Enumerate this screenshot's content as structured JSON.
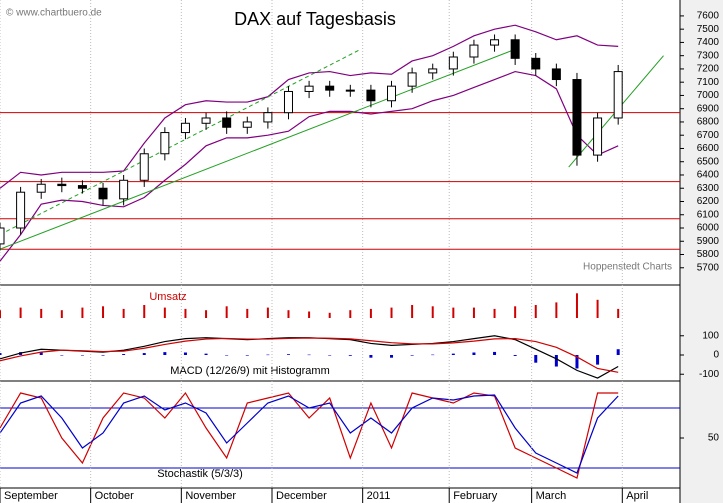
{
  "chart_data": [
    {
      "type": "candlestick",
      "title": "DAX auf Tagesbasis",
      "watermark": "© www.chartbuero.de",
      "source": "Hoppenstedt Charts",
      "x": [
        0,
        5,
        10,
        15,
        20,
        25,
        30,
        35,
        40,
        45,
        50,
        55,
        60,
        65,
        70,
        75,
        80,
        85,
        90,
        95,
        100,
        105,
        110,
        115,
        120,
        125,
        130,
        135,
        140,
        145,
        150
      ],
      "open": [
        5880,
        6000,
        6270,
        6330,
        6320,
        6300,
        6220,
        6360,
        6560,
        6720,
        6790,
        6830,
        6760,
        6800,
        6870,
        7030,
        7070,
        7040,
        7040,
        6960,
        7070,
        7170,
        7200,
        7290,
        7380,
        7420,
        7280,
        7200,
        7120,
        6550,
        6830
      ],
      "high": [
        6040,
        6310,
        6370,
        6380,
        6360,
        6340,
        6400,
        6600,
        6760,
        6830,
        6870,
        6880,
        6840,
        6910,
        7070,
        7110,
        7110,
        7080,
        7080,
        7110,
        7210,
        7240,
        7330,
        7420,
        7460,
        7460,
        7320,
        7240,
        7170,
        6870,
        7230
      ],
      "low": [
        5830,
        5950,
        6220,
        6270,
        6260,
        6170,
        6170,
        6310,
        6510,
        6670,
        6740,
        6710,
        6710,
        6750,
        6820,
        6980,
        6990,
        6990,
        6910,
        6910,
        7020,
        7120,
        7150,
        7240,
        7330,
        7230,
        7150,
        7070,
        6470,
        6500,
        6780
      ],
      "close": [
        6000,
        6270,
        6330,
        6320,
        6300,
        6220,
        6360,
        6560,
        6720,
        6790,
        6830,
        6760,
        6800,
        6870,
        7030,
        7070,
        7040,
        7040,
        6960,
        7070,
        7170,
        7200,
        7290,
        7380,
        7420,
        7280,
        7200,
        7120,
        6550,
        6830,
        7180
      ],
      "bands": [
        {
          "color": "#800080",
          "values": [
            6300,
            6420,
            6400,
            6420,
            6420,
            6420,
            6430,
            6640,
            6830,
            6930,
            6960,
            6950,
            6950,
            6990,
            7120,
            7170,
            7180,
            7150,
            7170,
            7160,
            7260,
            7300,
            7370,
            7450,
            7500,
            7530,
            7480,
            7420,
            7450,
            7380,
            7370
          ]
        },
        {
          "color": "#800080",
          "values": [
            5750,
            5950,
            6180,
            6210,
            6200,
            6170,
            6160,
            6230,
            6360,
            6480,
            6620,
            6680,
            6680,
            6700,
            6730,
            6840,
            6880,
            6880,
            6860,
            6880,
            6900,
            6960,
            7000,
            7060,
            7120,
            7180,
            7150,
            7050,
            6700,
            6550,
            6620
          ]
        }
      ],
      "trend_lines": [
        {
          "x": [
            0,
            126
          ],
          "y": [
            5840,
            7360
          ],
          "color": "#22a022",
          "dashed": false
        },
        {
          "x": [
            0,
            87
          ],
          "y": [
            5950,
            7340
          ],
          "color": "#22a022",
          "dashed": true
        },
        {
          "x": [
            138,
            161
          ],
          "y": [
            6460,
            7300
          ],
          "color": "#22a022",
          "dashed": false
        }
      ],
      "hlines": [
        6870,
        6350,
        6070,
        5840
      ],
      "hline_color": "#d00000",
      "xlim": [
        0,
        165
      ],
      "ylim": [
        5570,
        7720
      ],
      "yticks": [
        5700,
        5800,
        5900,
        6000,
        6100,
        6200,
        6300,
        6400,
        6500,
        6600,
        6700,
        6800,
        6900,
        7000,
        7100,
        7200,
        7300,
        7400,
        7500,
        7600
      ]
    },
    {
      "type": "bar",
      "title": "Umsatz",
      "color": "#d00000",
      "x": [
        0,
        5,
        10,
        15,
        20,
        25,
        30,
        35,
        40,
        45,
        50,
        55,
        60,
        65,
        70,
        75,
        80,
        85,
        90,
        95,
        100,
        105,
        110,
        115,
        120,
        125,
        130,
        135,
        140,
        145,
        150
      ],
      "values": [
        30,
        40,
        35,
        30,
        40,
        45,
        35,
        50,
        40,
        35,
        30,
        45,
        35,
        40,
        30,
        25,
        20,
        30,
        35,
        40,
        50,
        45,
        40,
        40,
        35,
        45,
        50,
        60,
        95,
        70,
        35
      ],
      "xlim": [
        0,
        165
      ],
      "ylim": [
        0,
        100
      ]
    },
    {
      "type": "macd",
      "title": "MACD (12/26/9) mit Histogramm",
      "x": [
        0,
        5,
        10,
        15,
        20,
        25,
        30,
        35,
        40,
        45,
        50,
        55,
        60,
        65,
        70,
        75,
        80,
        85,
        90,
        95,
        100,
        105,
        110,
        115,
        120,
        125,
        130,
        135,
        140,
        145,
        150
      ],
      "series": [
        {
          "color": "#000000",
          "values": [
            -20,
            10,
            30,
            25,
            20,
            15,
            25,
            45,
            70,
            85,
            90,
            85,
            80,
            85,
            90,
            90,
            85,
            80,
            60,
            50,
            55,
            60,
            70,
            85,
            100,
            80,
            30,
            -20,
            -80,
            -120,
            -60
          ]
        },
        {
          "color": "#d00000",
          "values": [
            -30,
            -5,
            15,
            25,
            22,
            18,
            20,
            35,
            55,
            72,
            83,
            86,
            83,
            83,
            86,
            88,
            87,
            84,
            74,
            64,
            58,
            58,
            63,
            72,
            84,
            85,
            70,
            40,
            -10,
            -70,
            -90
          ]
        }
      ],
      "histogram": {
        "color": "#0000cc",
        "values": [
          10,
          15,
          15,
          0,
          -2,
          -3,
          5,
          10,
          15,
          13,
          7,
          -1,
          -3,
          2,
          4,
          2,
          -2,
          -4,
          -14,
          -14,
          -3,
          2,
          7,
          13,
          16,
          -5,
          -40,
          -60,
          -70,
          -50,
          30
        ]
      },
      "xlim": [
        0,
        165
      ],
      "ylim": [
        -130,
        130
      ],
      "yticks": [
        -100,
        0,
        100
      ]
    },
    {
      "type": "stochastic",
      "title": "Stochastik (5/3/3)",
      "x": [
        0,
        5,
        10,
        15,
        20,
        25,
        30,
        35,
        40,
        45,
        50,
        55,
        60,
        65,
        70,
        75,
        80,
        85,
        90,
        95,
        100,
        105,
        110,
        115,
        120,
        125,
        130,
        135,
        140,
        145,
        150
      ],
      "series": [
        {
          "color": "#d00000",
          "values": [
            60,
            95,
            90,
            50,
            25,
            70,
            95,
            90,
            70,
            95,
            60,
            30,
            85,
            90,
            95,
            70,
            90,
            30,
            85,
            40,
            95,
            90,
            85,
            95,
            92,
            40,
            30,
            20,
            10,
            95,
            95
          ]
        },
        {
          "color": "#0000cc",
          "values": [
            55,
            85,
            92,
            70,
            40,
            55,
            85,
            92,
            78,
            85,
            75,
            45,
            65,
            85,
            92,
            80,
            85,
            55,
            70,
            55,
            80,
            90,
            88,
            92,
            93,
            60,
            35,
            25,
            15,
            70,
            92
          ]
        }
      ],
      "hlines": [
        80,
        20
      ],
      "hline_color": "#0000cc",
      "xlim": [
        0,
        165
      ],
      "ylim": [
        0,
        105
      ],
      "yticks": [
        50
      ],
      "xticks": [
        {
          "value": 0,
          "label": "September"
        },
        {
          "value": 22,
          "label": "October"
        },
        {
          "value": 44,
          "label": "November"
        },
        {
          "value": 66,
          "label": "December"
        },
        {
          "value": 88,
          "label": "2011"
        },
        {
          "value": 109,
          "label": "February"
        },
        {
          "value": 129,
          "label": "March"
        },
        {
          "value": 151,
          "label": "April"
        }
      ]
    }
  ]
}
